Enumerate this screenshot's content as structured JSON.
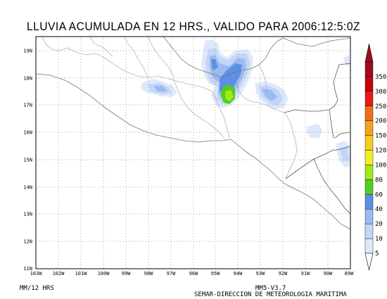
{
  "title": "LLUVIA ACUMULADA EN 12 HRS., VALIDO PARA 2006:12:5:0Z",
  "units_label": "MM/12 HRS",
  "model_label": "MM5-V3.7",
  "credit": "SEMAR-DIRECCION DE METEOROLOGIA MARITIMA",
  "lat_labels": [
    "19N",
    "18N",
    "17N",
    "16N",
    "15N",
    "14N",
    "13N",
    "12N",
    "11N"
  ],
  "lon_labels": [
    "103W",
    "102W",
    "101W",
    "100W",
    "99W",
    "98W",
    "97W",
    "96W",
    "95W",
    "94W",
    "93W",
    "92W",
    "91W",
    "90W",
    "89W"
  ],
  "colorbar": {
    "levels": [
      "5",
      "10",
      "20",
      "40",
      "60",
      "80",
      "100",
      "120",
      "150",
      "200",
      "250",
      "300",
      "350"
    ],
    "colors": [
      "#dde9fb",
      "#c4d6f6",
      "#9bbbf0",
      "#5d8fe6",
      "#4fd11f",
      "#a4e81c",
      "#f0f01c",
      "#f5cb1f",
      "#f3a31a",
      "#f06d13",
      "#e81c13",
      "#c8000d",
      "#9f0d20"
    ]
  },
  "map": {
    "land_lat_range": [
      11,
      19.5
    ],
    "lon_range": [
      -103,
      -89
    ],
    "features": [
      "coastline",
      "state borders",
      "country borders"
    ]
  }
}
